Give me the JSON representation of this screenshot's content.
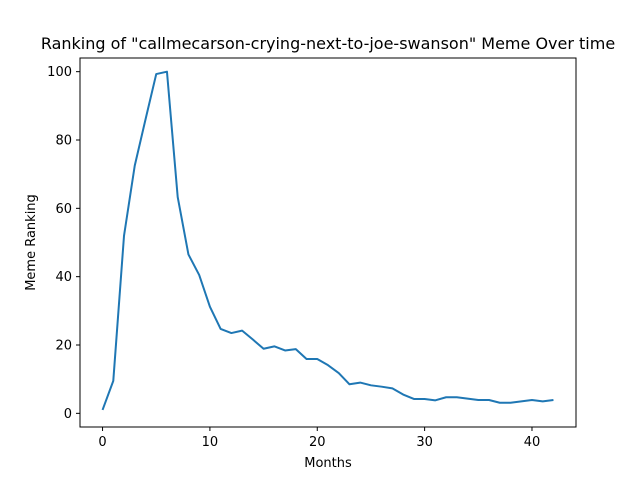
{
  "chart_data": {
    "type": "line",
    "title": "Ranking of \"callmecarson-crying-next-to-joe-swanson\" Meme Over time",
    "xlabel": "Months",
    "ylabel": "Meme Ranking",
    "xlim": [
      -2.1,
      44.1
    ],
    "ylim": [
      -4.0,
      104.0
    ],
    "xticks": [
      0,
      10,
      20,
      30,
      40
    ],
    "yticks": [
      0,
      20,
      40,
      60,
      80,
      100
    ],
    "grid": false,
    "series": [
      {
        "color": "#1f77b4",
        "x": [
          0,
          1,
          2,
          3,
          4,
          5,
          6,
          7,
          8,
          9,
          10,
          11,
          12,
          13,
          14,
          15,
          16,
          17,
          18,
          19,
          20,
          21,
          22,
          23,
          24,
          25,
          26,
          27,
          28,
          29,
          30,
          31,
          32,
          33,
          34,
          35,
          36,
          37,
          38,
          39,
          40,
          41,
          42
        ],
        "values": [
          1,
          9.5,
          52,
          72.5,
          86,
          99.3,
          100,
          63.3,
          46.5,
          40.5,
          31.2,
          24.7,
          23.5,
          24.2,
          21.6,
          18.9,
          19.6,
          18.4,
          18.8,
          15.9,
          15.9,
          14.1,
          11.8,
          8.5,
          9,
          8.2,
          7.8,
          7.3,
          5.5,
          4.2,
          4.2,
          3.8,
          4.7,
          4.7,
          4.3,
          3.9,
          3.9,
          3.1,
          3.1,
          3.5,
          3.9,
          3.5,
          3.9
        ]
      }
    ]
  }
}
